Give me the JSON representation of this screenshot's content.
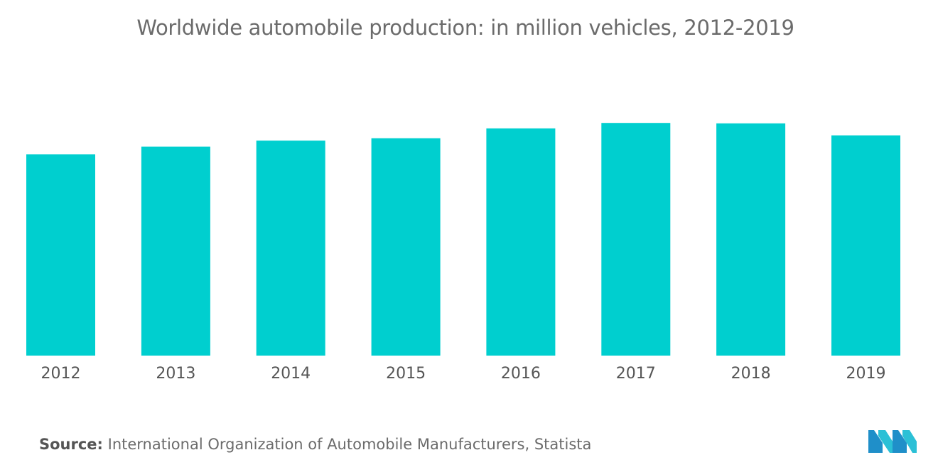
{
  "header": {
    "title": "Worldwide automobile production: in million vehicles, 2012-2019"
  },
  "footer": {
    "source_label": "Source:",
    "source_text": "International Organization of Automobile Manufacturers, Statista"
  },
  "chart_data": {
    "type": "bar",
    "title": "Worldwide automobile production: in million vehicles, 2012-2019",
    "xlabel": "",
    "ylabel": "",
    "categories": [
      "2012",
      "2013",
      "2014",
      "2015",
      "2016",
      "2017",
      "2018",
      "2019"
    ],
    "values": [
      84.1,
      87.3,
      89.8,
      90.8,
      94.9,
      97.2,
      97.0,
      92.0
    ],
    "ylim": [
      0,
      110
    ],
    "grid": false,
    "legend": "none",
    "bar_color": "#00CFCF",
    "tick_color": "#555555"
  },
  "logo": {
    "icon": "mordor-intelligence-logo-icon",
    "colors": [
      "#1F8FC9",
      "#2BC0D6"
    ]
  }
}
